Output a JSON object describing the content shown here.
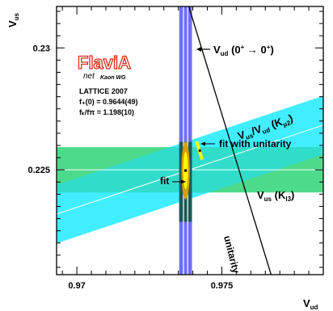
{
  "chart_data": {
    "type": "constraint-plot",
    "xlabel": "V",
    "xlabel_sub": "ud",
    "ylabel": "V",
    "ylabel_sub": "us",
    "xlim": [
      0.9693,
      0.9785
    ],
    "ylim": [
      0.2207,
      0.2317
    ],
    "x_ticks": [
      0.97,
      0.975
    ],
    "x_tick_labels": [
      "0.97",
      "0.975"
    ],
    "y_ticks": [
      0.225,
      0.23
    ],
    "y_tick_labels": [
      "0.225",
      "0.23"
    ],
    "logo": {
      "main": "FlaviA",
      "sub1": "net",
      "sub2": "Kaon WG"
    },
    "info_lines": [
      "LATTICE 2007",
      "f₊(0) = 0.9644(49)",
      "fₖ/fπ = 1.198(10)"
    ],
    "bands": [
      {
        "name": "Vus (Kl3)",
        "label_main": "V",
        "label_sub": "us",
        "label_paren": "(K",
        "label_paren_sub": "l3",
        "label_close": ")",
        "color": "#4dda8a",
        "y_center": 0.225,
        "y_half_width": 0.00093
      },
      {
        "name": "Vus/Vud (Kmu2)",
        "label_main": "V",
        "label_sub": "us",
        "label_slash": "/V",
        "label_sub2": "ud",
        "label_paren": "(K",
        "label_paren_sub": "μ2",
        "label_close": ")",
        "color": "#00e8ff",
        "slope": 0.397,
        "anchor_x": 0.9733,
        "anchor_y": 0.22477,
        "y_half_width": 0.0012
      }
    ],
    "vud_band": {
      "label_main": "V",
      "label_sub": "ud",
      "label_paren": "(0",
      "label_sup1": "+",
      "label_arrow": " → 0",
      "label_sup2": "+",
      "label_close": ")",
      "color": "#6e6ef5",
      "x_center": 0.97375,
      "x_half_width": 0.00022,
      "line_color": "#ffffff"
    },
    "unitarity": {
      "label": "unitarity",
      "points": [
        [
          0.97386,
          0.2317
        ],
        [
          0.9767,
          0.2207
        ]
      ]
    },
    "fit": {
      "label": "fit",
      "x": 0.97375,
      "y": 0.22497,
      "ellipse_outer": {
        "rx": 0.000145,
        "ry": 0.00118,
        "color": "#d4a000"
      },
      "ellipse_inner": {
        "rx": 8e-05,
        "ry": 0.00077,
        "color": "#ffff00"
      }
    },
    "fit_unitarity": {
      "label": "fit with unitarity",
      "x": 0.97424,
      "y": 0.22579,
      "segment": [
        [
          0.97413,
          0.22616
        ],
        [
          0.97432,
          0.22542
        ]
      ],
      "color": "#ffff00"
    }
  }
}
